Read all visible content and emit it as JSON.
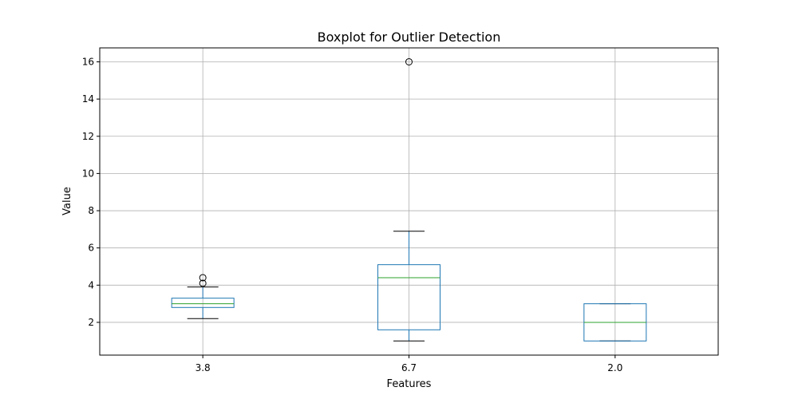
{
  "chart_data": {
    "type": "box",
    "title": "Boxplot for Outlier Detection",
    "xlabel": "Features",
    "ylabel": "Value",
    "ylim": [
      0.24,
      16.75
    ],
    "yticks": [
      2,
      4,
      6,
      8,
      10,
      12,
      14,
      16
    ],
    "grid": true,
    "categories": [
      "3.8",
      "6.7",
      "2.0"
    ],
    "boxes": [
      {
        "category": "3.8",
        "whisker_low": 2.2,
        "q1": 2.8,
        "median": 3.0,
        "q3": 3.3,
        "whisker_high": 3.9,
        "outliers": [
          4.1,
          4.4
        ]
      },
      {
        "category": "6.7",
        "whisker_low": 1.0,
        "q1": 1.6,
        "median": 4.4,
        "q3": 5.1,
        "whisker_high": 6.9,
        "outliers": [
          16.0
        ]
      },
      {
        "category": "2.0",
        "whisker_low": 1.0,
        "q1": 1.0,
        "median": 2.0,
        "q3": 3.0,
        "whisker_high": 3.0,
        "outliers": []
      }
    ]
  },
  "colors": {
    "box": "#1f77b4",
    "median": "#2ca02c",
    "whisker_cap": "#000000",
    "grid": "#b0b0b0",
    "axes": "#000000"
  }
}
